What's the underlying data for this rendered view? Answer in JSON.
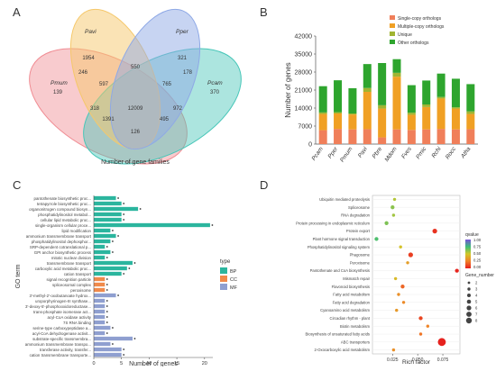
{
  "panel_letters": [
    "A",
    "B",
    "C",
    "D"
  ],
  "chart_data": [
    {
      "panel": "A",
      "type": "venn",
      "sets": [
        "Pavi",
        "Pper",
        "Pmum",
        "Pcam"
      ],
      "regions": [
        "1954",
        "321",
        "550",
        "246",
        "178",
        "139",
        "597",
        "765",
        "370",
        "318",
        "12009",
        "972",
        "1391",
        "495",
        "126"
      ],
      "xlabel": "Number of gene families",
      "colors": {
        "Pavi": "#f5c86b",
        "Pper": "#8fa9e6",
        "Pmum": "#f08c93",
        "Pcam": "#47c6b8"
      }
    },
    {
      "panel": "B",
      "type": "stacked_bar",
      "categories": [
        "Pcam",
        "Pper",
        "Pmum",
        "Pavi",
        "Pbre",
        "Mdom",
        "Fves",
        "Pmic",
        "Rchi",
        "Rocc",
        "Atha"
      ],
      "ylabel": "Number of genes",
      "yticks": [
        "0",
        "7000",
        "14000",
        "21000",
        "28000",
        "35000",
        "42000"
      ],
      "ylim": [
        0,
        42000
      ],
      "legend": [
        "Single-copy orthologs",
        "Multiple-copy orthologs",
        "Unique",
        "Other orthologs"
      ],
      "series": [
        {
          "name": "Single-copy orthologs",
          "color": "#f07f5a",
          "values": [
            5400,
            5900,
            5700,
            5800,
            2600,
            5700,
            5500,
            5700,
            5900,
            5700,
            5800
          ]
        },
        {
          "name": "Multiple-copy orthologs",
          "color": "#f0a024",
          "values": [
            6300,
            6000,
            5800,
            14500,
            11200,
            20500,
            5900,
            8700,
            11800,
            8100,
            5900
          ]
        },
        {
          "name": "Unique",
          "color": "#a0b431",
          "values": [
            600,
            500,
            400,
            1500,
            1300,
            1500,
            800,
            1000,
            600,
            500,
            1000
          ]
        },
        {
          "name": "Other orthologs",
          "color": "#2ea52e",
          "values": [
            10200,
            12400,
            9800,
            9300,
            16400,
            5300,
            10700,
            9300,
            9100,
            11100,
            10600
          ]
        }
      ]
    },
    {
      "panel": "C",
      "type": "bar",
      "categories": [
        "pantothenate biosynthetic proc...",
        "tetrapyrrole biosynthetic proc...",
        "organonitrogen compound biosyn...",
        "phosphatidylinositol metabol...",
        "cellular lipid metabolic proc...",
        "single-organism cellular proce...",
        "lipid modification",
        "ammonium transmembrane transport",
        "phosphatidylinositol dephosphor...",
        "SRP-dependent cotranslational p...",
        "GPI anchor biosynthetic process",
        "mitotic nuclear division",
        "transmembrane transport",
        "carboxylic acid metabolic proc...",
        "cation transport",
        "signal recognition particle",
        "spliceosomal complex",
        "peroxisome",
        "3'-methyl-2'-oxobutanoate hydrox...",
        "uroporphyrinogen-III synthase...",
        "3'-deoxy-5'-phosphooxidoreductase...",
        "trans-phosphate isomerase act...",
        "acyl-CoA oxidase activity",
        "7S RNA binding",
        "serine-type carboxypeptidase a...",
        "acyl-CoA dehydrogenase activit...",
        "substrate-specific transmembra...",
        "ammonium transmembrane transpo...",
        "transferase activity, transfer...",
        "cation transmembrane transporte..."
      ],
      "values": [
        4,
        5,
        8,
        5,
        5,
        21,
        3,
        4,
        3,
        2,
        3,
        2,
        7,
        6,
        5,
        2,
        2,
        2,
        4,
        2,
        2,
        2,
        2,
        2,
        3,
        2,
        7,
        3,
        5,
        5
      ],
      "groups": [
        "BP",
        "BP",
        "BP",
        "BP",
        "BP",
        "BP",
        "BP",
        "BP",
        "BP",
        "BP",
        "BP",
        "BP",
        "BP",
        "BP",
        "BP",
        "CC",
        "CC",
        "CC",
        "MF",
        "MF",
        "MF",
        "MF",
        "MF",
        "MF",
        "MF",
        "MF",
        "MF",
        "MF",
        "MF",
        "MF"
      ],
      "xlabel": "Number of genes",
      "ylabel": "GO term",
      "xticks": [
        "0",
        "5",
        "10",
        "15",
        "20"
      ],
      "xlim": [
        0,
        21.5
      ],
      "legend_title": "type",
      "legend": [
        {
          "name": "BP",
          "color": "#2bb59e"
        },
        {
          "name": "CC",
          "color": "#f08a4b"
        },
        {
          "name": "MF",
          "color": "#8f9fd0"
        }
      ]
    },
    {
      "panel": "D",
      "type": "scatter",
      "categories": [
        "Ubiquitin mediated proteolysis",
        "Spliceosome",
        "RNA degradation",
        "Protein processing in endoplasmic reticulum",
        "Protein export",
        "Plant hormone signal transduction",
        "Phosphatidylinositol signaling system",
        "Phagosome",
        "Peroxisome",
        "Pantothenate and CoA biosynthesis",
        "Mismatch repair",
        "Flavonoid biosynthesis",
        "Fatty acid metabolism",
        "Fatty acid degradation",
        "Cyanoamino acid metabolism",
        "Circadian rhythm - plant",
        "Biotin metabolism",
        "Biosynthesis of unsaturated fatty acids",
        "ABC transporters",
        "2-Oxocarboxylic acid metabolism"
      ],
      "points": [
        {
          "x": 0.027,
          "size": 2,
          "q": 0.55
        },
        {
          "x": 0.025,
          "size": 3,
          "q": 0.62
        },
        {
          "x": 0.026,
          "size": 2,
          "q": 0.58
        },
        {
          "x": 0.019,
          "size": 3,
          "q": 0.64
        },
        {
          "x": 0.067,
          "size": 4,
          "q": 0.05
        },
        {
          "x": 0.009,
          "size": 3,
          "q": 0.72
        },
        {
          "x": 0.033,
          "size": 2,
          "q": 0.48
        },
        {
          "x": 0.043,
          "size": 4,
          "q": 0.08
        },
        {
          "x": 0.04,
          "size": 2,
          "q": 0.35
        },
        {
          "x": 0.089,
          "size": 3,
          "q": 0.02
        },
        {
          "x": 0.028,
          "size": 2,
          "q": 0.45
        },
        {
          "x": 0.035,
          "size": 3,
          "q": 0.18
        },
        {
          "x": 0.031,
          "size": 2,
          "q": 0.3
        },
        {
          "x": 0.036,
          "size": 2,
          "q": 0.28
        },
        {
          "x": 0.029,
          "size": 2,
          "q": 0.33
        },
        {
          "x": 0.053,
          "size": 3,
          "q": 0.1
        },
        {
          "x": 0.06,
          "size": 2,
          "q": 0.26
        },
        {
          "x": 0.053,
          "size": 2,
          "q": 0.22
        },
        {
          "x": 0.074,
          "size": 8,
          "q": 0.01
        },
        {
          "x": 0.026,
          "size": 2,
          "q": 0.3
        }
      ],
      "xlabel": "Rich factor",
      "xticks": [
        "0.025",
        "0.050",
        "0.075"
      ],
      "xlim": [
        0.005,
        0.092
      ],
      "qvalue_title": "qvalue",
      "qvalue_ticks": [
        "1.00",
        "0.75",
        "0.50",
        "0.25",
        "0.00"
      ],
      "gene_number_title": "Gene_number",
      "gene_number_ticks": [
        "2",
        "3",
        "4",
        "5",
        "6",
        "7",
        "8"
      ]
    }
  ]
}
